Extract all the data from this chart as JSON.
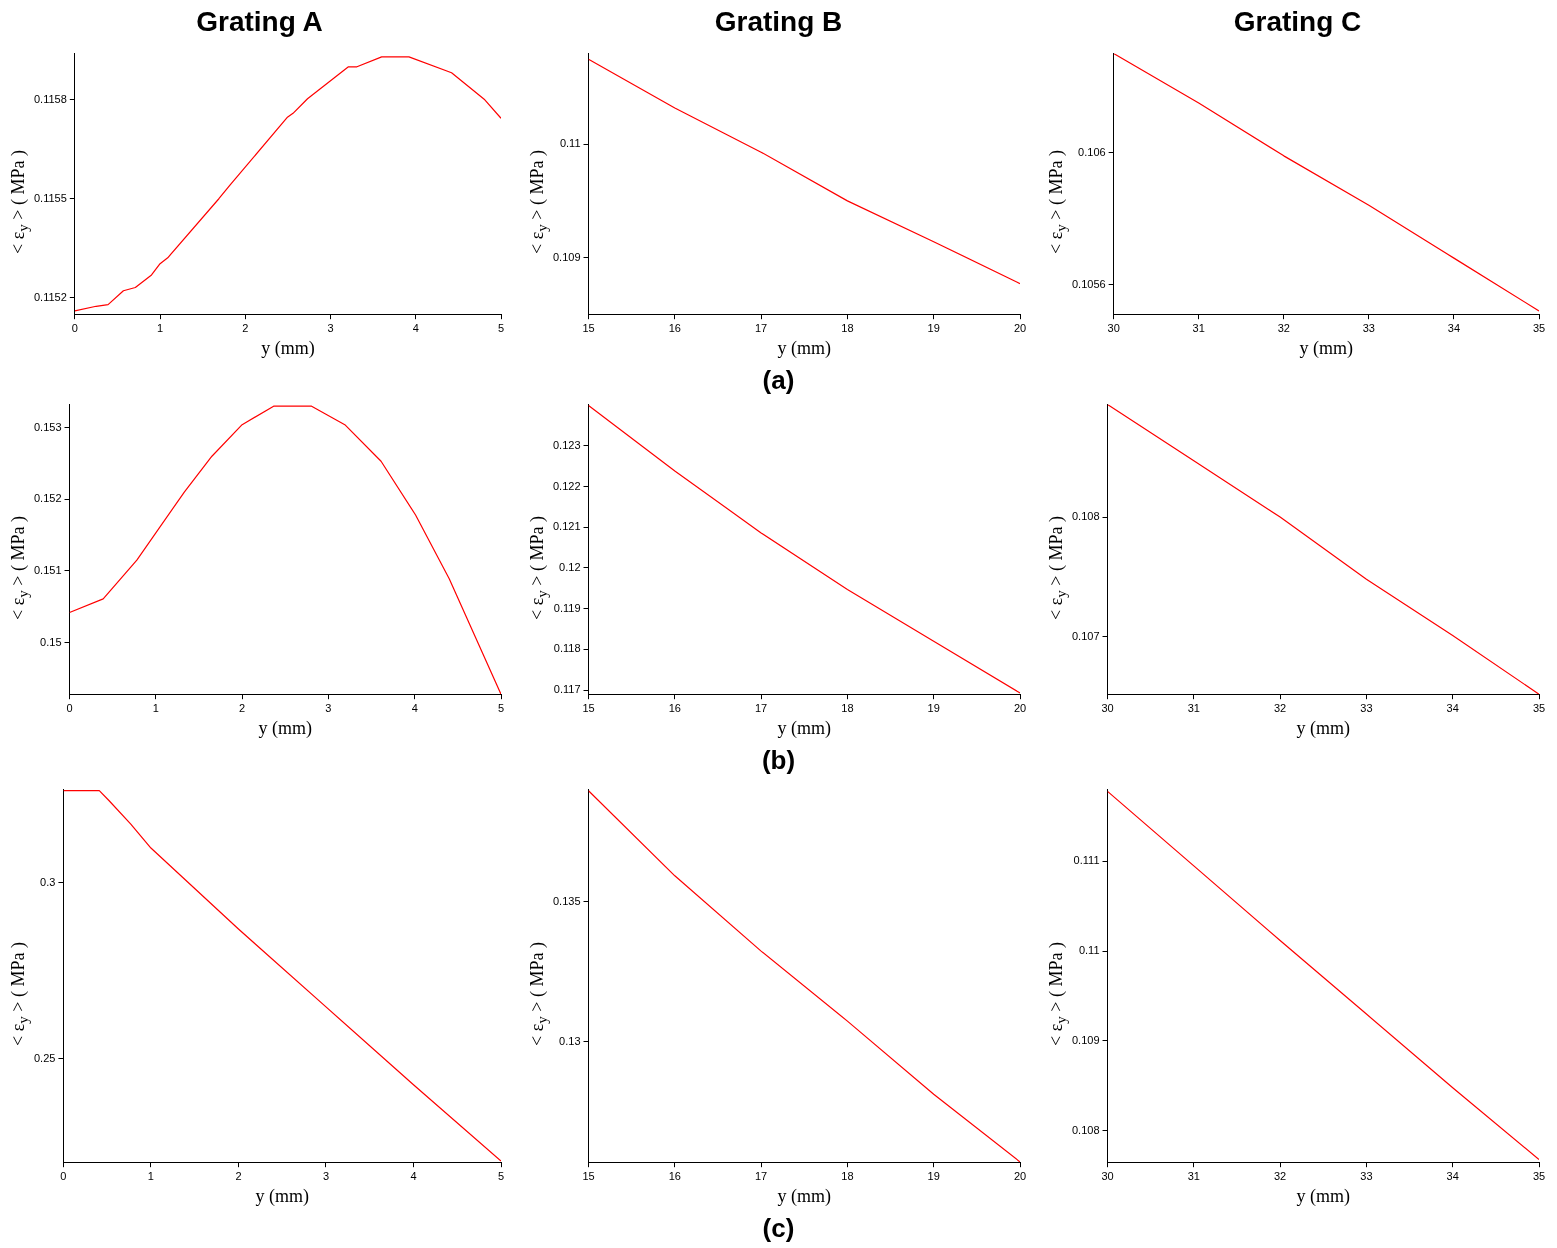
{
  "chart_data": [
    {
      "type": "line",
      "title": "Grating A",
      "xlabel": "y (mm)",
      "ylabel": "< ε$_{y}$ > ( MPa )",
      "x": [
        0,
        0.25,
        0.39,
        0.57,
        0.71,
        0.9,
        1.0,
        1.09,
        1.69,
        1.82,
        2.49,
        2.56,
        2.73,
        3.21,
        3.31,
        3.6,
        3.92,
        4.42,
        4.81,
        5
      ],
      "series": [
        {
          "color": "#ff0000",
          "values": [
            0.11516,
            0.115174,
            0.115179,
            0.115221,
            0.115231,
            0.115269,
            0.115303,
            0.115321,
            0.1155,
            0.115541,
            0.115746,
            0.115759,
            0.115803,
            0.1159,
            0.1159,
            0.11593,
            0.11593,
            0.115882,
            0.1158,
            0.115744
          ]
        }
      ],
      "xlim": [
        0,
        5
      ],
      "xticks": [
        0,
        1,
        2,
        3,
        4,
        5
      ],
      "ylim": [
        0.11515,
        0.11594
      ],
      "yticks": [
        0.1152,
        0.1155,
        0.1158
      ]
    },
    {
      "type": "line",
      "title": "Grating B",
      "xlabel": "y (mm)",
      "ylabel": "< ε$_{y}$ > ( MPa )",
      "annotations": [
        "(a)"
      ],
      "x": [
        15,
        16,
        17,
        18,
        19,
        20
      ],
      "series": [
        {
          "color": "#ff0000",
          "values": [
            0.11075,
            0.11032,
            0.10993,
            0.1095,
            0.10914,
            0.10877
          ]
        }
      ],
      "xlim": [
        15,
        20
      ],
      "xticks": [
        15,
        16,
        17,
        18,
        19,
        20
      ],
      "ylim": [
        0.1085,
        0.1108
      ],
      "yticks": [
        0.109,
        0.11
      ]
    },
    {
      "type": "line",
      "title": "Grating C",
      "xlabel": "y (mm)",
      "ylabel": "< ε$_{y}$ > ( MPa )",
      "x": [
        30,
        31,
        32,
        33,
        34,
        35
      ],
      "series": [
        {
          "color": "#ff0000",
          "values": [
            0.1063,
            0.10615,
            0.10599,
            0.10584,
            0.10568,
            0.10552
          ]
        }
      ],
      "xlim": [
        30,
        35
      ],
      "xticks": [
        30,
        31,
        32,
        33,
        34,
        35
      ],
      "ylim": [
        0.10551,
        0.1063
      ],
      "yticks": [
        0.1056,
        0.106
      ]
    },
    {
      "type": "line",
      "xlabel": "y (mm)",
      "ylabel": "< ε$_{y}$ > ( MPa )",
      "x": [
        0,
        0.39,
        0.78,
        1.33,
        1.65,
        2.0,
        2.37,
        2.8,
        3.19,
        3.61,
        4.01,
        4.4,
        5
      ],
      "series": [
        {
          "color": "#ff0000",
          "values": [
            0.15042,
            0.15061,
            0.15115,
            0.1521,
            0.1526,
            0.15304,
            0.1533,
            0.1533,
            0.15304,
            0.15253,
            0.15178,
            0.15089,
            0.14928
          ]
        }
      ],
      "xlim": [
        0,
        5
      ],
      "xticks": [
        0,
        1,
        2,
        3,
        4,
        5
      ],
      "ylim": [
        0.14928,
        0.15332
      ],
      "yticks": [
        0.15,
        0.151,
        0.152,
        0.153
      ]
    },
    {
      "type": "line",
      "xlabel": "y (mm)",
      "ylabel": "< ε$_{y}$ > ( MPa )",
      "annotations": [
        "(b)"
      ],
      "x": [
        15,
        16,
        17,
        18,
        19,
        20
      ],
      "series": [
        {
          "color": "#ff0000",
          "values": [
            0.12399,
            0.12238,
            0.12086,
            0.11947,
            0.1182,
            0.11693
          ]
        }
      ],
      "xlim": [
        15,
        20
      ],
      "xticks": [
        15,
        16,
        17,
        18,
        19,
        20
      ],
      "ylim": [
        0.1169,
        0.12401
      ],
      "yticks": [
        0.117,
        0.118,
        0.119,
        0.12,
        0.121,
        0.122,
        0.123
      ]
    },
    {
      "type": "line",
      "xlabel": "y (mm)",
      "ylabel": "< ε$_{y}$ > ( MPa )",
      "x": [
        30,
        31,
        32,
        33,
        34,
        35
      ],
      "series": [
        {
          "color": "#ff0000",
          "values": [
            0.10894,
            0.10847,
            0.108,
            0.10748,
            0.10701,
            0.10652
          ]
        }
      ],
      "xlim": [
        30,
        35
      ],
      "xticks": [
        30,
        31,
        32,
        33,
        34,
        35
      ],
      "ylim": [
        0.10652,
        0.10894
      ],
      "yticks": [
        0.107,
        0.108
      ]
    },
    {
      "type": "line",
      "xlabel": "y (mm)",
      "ylabel": "< ε$_{y}$ > ( MPa )",
      "x": [
        0,
        0.41,
        0.52,
        0.77,
        1.0,
        2.0,
        3.0,
        4.0,
        5.0
      ],
      "series": [
        {
          "color": "#ff0000",
          "values": [
            0.3261,
            0.3261,
            0.3233,
            0.3166,
            0.3098,
            0.2868,
            0.2647,
            0.2426,
            0.2209
          ]
        }
      ],
      "xlim": [
        0,
        5
      ],
      "xticks": [
        0,
        1,
        2,
        3,
        4,
        5
      ],
      "ylim": [
        0.2206,
        0.3264
      ],
      "yticks": [
        0.25,
        0.3
      ]
    },
    {
      "type": "line",
      "xlabel": "y (mm)",
      "ylabel": "< ε$_{y}$ > ( MPa )",
      "annotations": [
        "(c)"
      ],
      "x": [
        15,
        16,
        17,
        18,
        19,
        20
      ],
      "series": [
        {
          "color": "#ff0000",
          "values": [
            0.13896,
            0.13592,
            0.13323,
            0.13073,
            0.12812,
            0.1257
          ]
        }
      ],
      "xlim": [
        15,
        20
      ],
      "xticks": [
        15,
        16,
        17,
        18,
        19,
        20
      ],
      "ylim": [
        0.12569,
        0.139
      ],
      "yticks": [
        0.13,
        0.135
      ]
    },
    {
      "type": "line",
      "xlabel": "y (mm)",
      "ylabel": "< ε$_{y}$ > ( MPa )",
      "x": [
        30,
        31,
        32,
        33,
        34,
        35
      ],
      "series": [
        {
          "color": "#ff0000",
          "values": [
            0.11178,
            0.11095,
            0.11012,
            0.1093,
            0.10848,
            0.10768
          ]
        }
      ],
      "xlim": [
        30,
        35
      ],
      "xticks": [
        30,
        31,
        32,
        33,
        34,
        35
      ],
      "ylim": [
        0.10765,
        0.1118
      ],
      "yticks": [
        0.108,
        0.109,
        0.11,
        0.111
      ]
    }
  ]
}
